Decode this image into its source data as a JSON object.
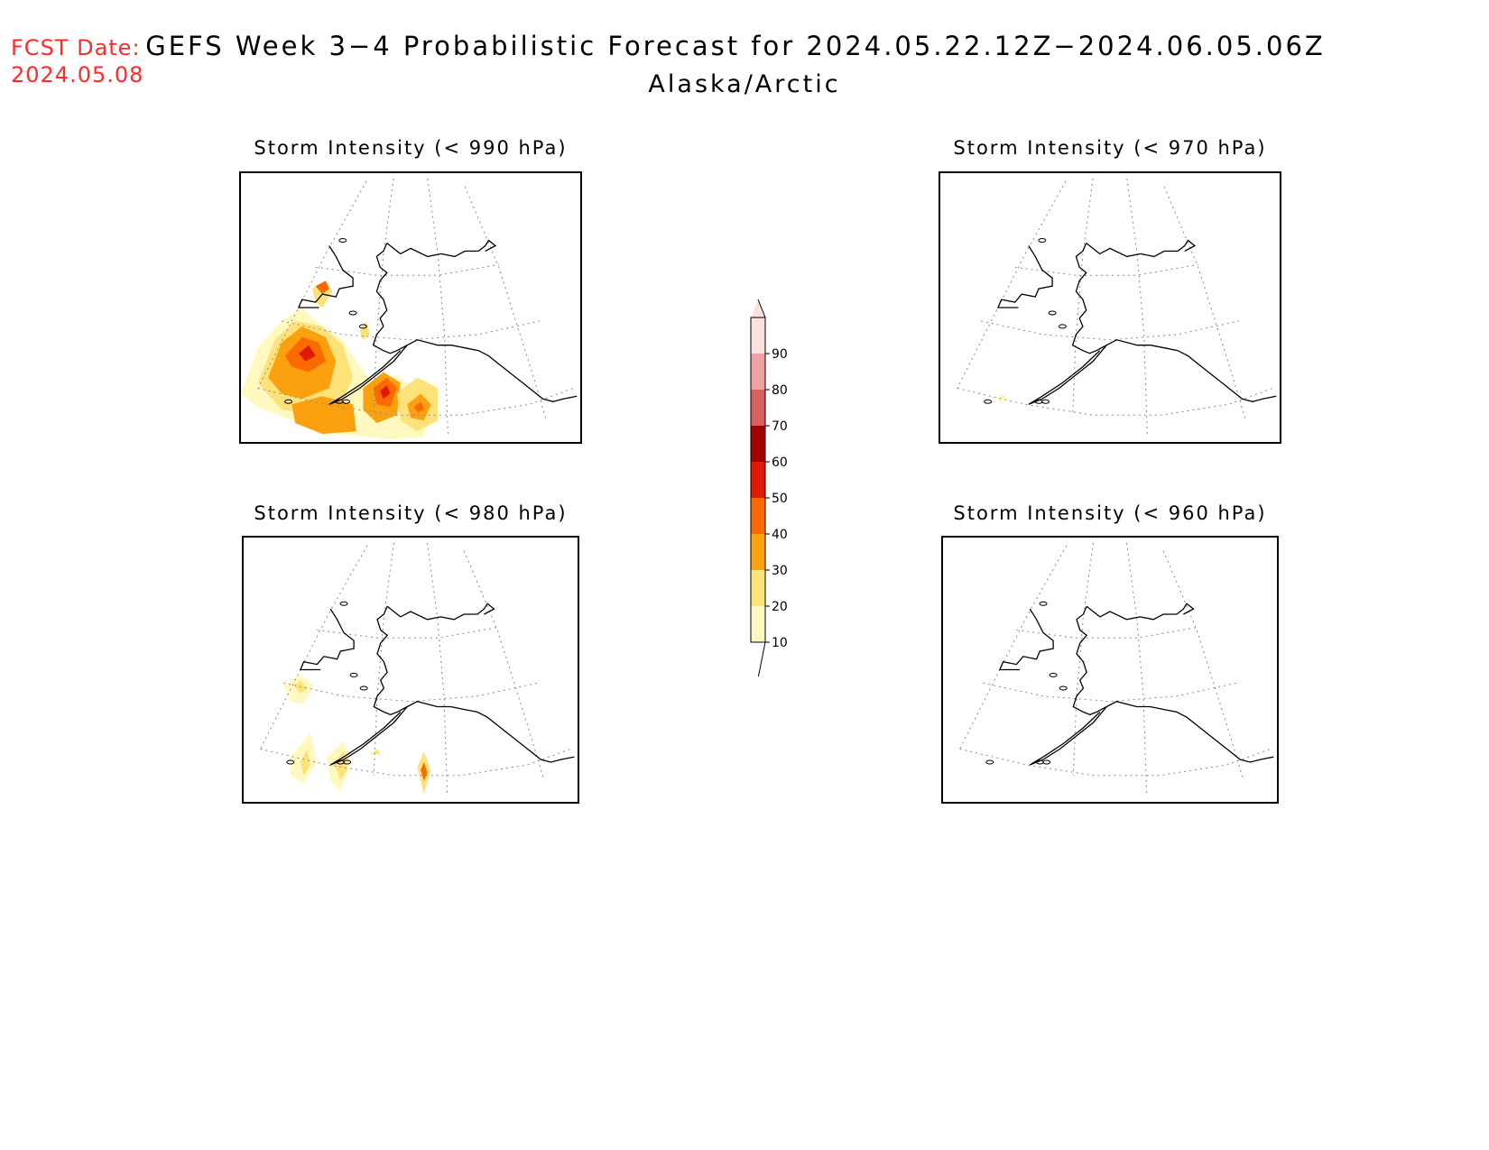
{
  "header": {
    "fcst_label": "FCST Date:",
    "fcst_date": "2024.05.08",
    "title": "GEFS Week 3−4 Probabilistic Forecast for 2024.05.22.12Z−2024.06.05.06Z",
    "subtitle": "Alaska/Arctic"
  },
  "panels": [
    {
      "title": "Storm Intensity (< 990 hPa)",
      "shading": "heavy"
    },
    {
      "title": "Storm Intensity (< 970 hPa)",
      "shading": "trace"
    },
    {
      "title": "Storm Intensity (< 980 hPa)",
      "shading": "light"
    },
    {
      "title": "Storm Intensity (< 960 hPa)",
      "shading": "none"
    }
  ],
  "colorbar": {
    "levels": [
      "10",
      "20",
      "30",
      "40",
      "50",
      "60",
      "70",
      "80",
      "90"
    ],
    "colors": [
      "#fff9c0",
      "#fde27a",
      "#fba10f",
      "#fb6a00",
      "#e01a00",
      "#a30000",
      "#d96060",
      "#f0a0a0",
      "#fbe0e0"
    ]
  }
}
